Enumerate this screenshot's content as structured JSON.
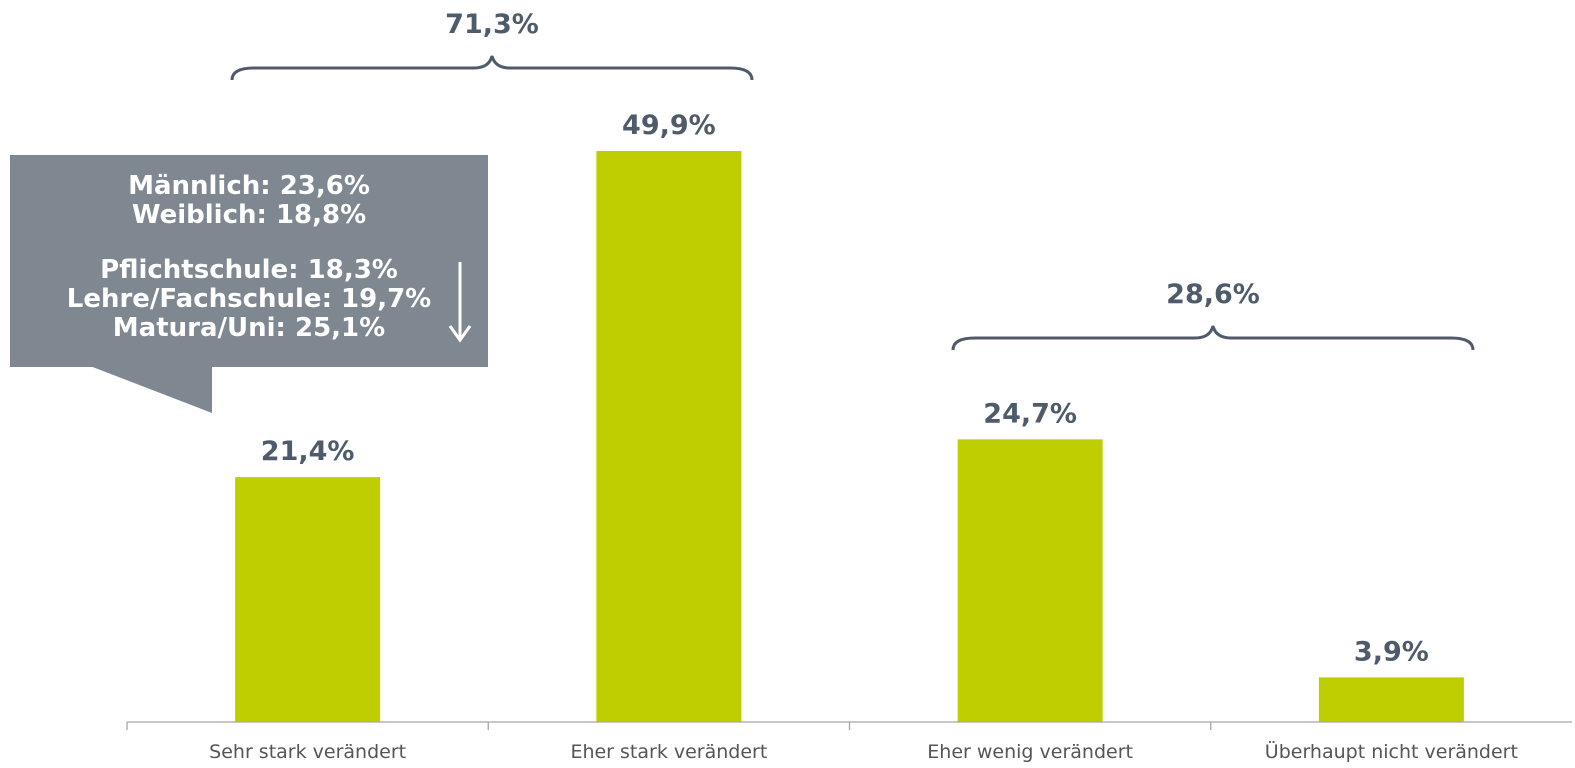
{
  "chart_data": {
    "type": "bar",
    "categories": [
      "Sehr stark verändert",
      "Eher stark verändert",
      "Eher wenig verändert",
      "Überhaupt nicht verändert"
    ],
    "values": [
      21.4,
      49.9,
      24.7,
      3.9
    ],
    "value_labels": [
      "21,4%",
      "49,9%",
      "24,7%",
      "3,9%"
    ],
    "title": "",
    "xlabel": "",
    "ylabel": "",
    "ylim": [
      0,
      50
    ],
    "grid": false,
    "bar_color": "#bfce00",
    "label_color": "#4f5b6b",
    "groups": [
      {
        "label": "71,3%",
        "categories": [
          "Sehr stark verändert",
          "Eher stark verändert"
        ]
      },
      {
        "label": "28,6%",
        "categories": [
          "Eher wenig verändert",
          "Überhaupt nicht verändert"
        ]
      }
    ]
  },
  "callout": {
    "bg_color": "#7f8891",
    "gender": [
      "Männlich: 23,6%",
      "Weiblich: 18,8%"
    ],
    "education": [
      "Pflichtschule: 18,3%",
      "Lehre/Fachschule: 19,7%",
      "Matura/Uni: 25,1%"
    ],
    "arrow_icon": "arrow-down-icon"
  }
}
